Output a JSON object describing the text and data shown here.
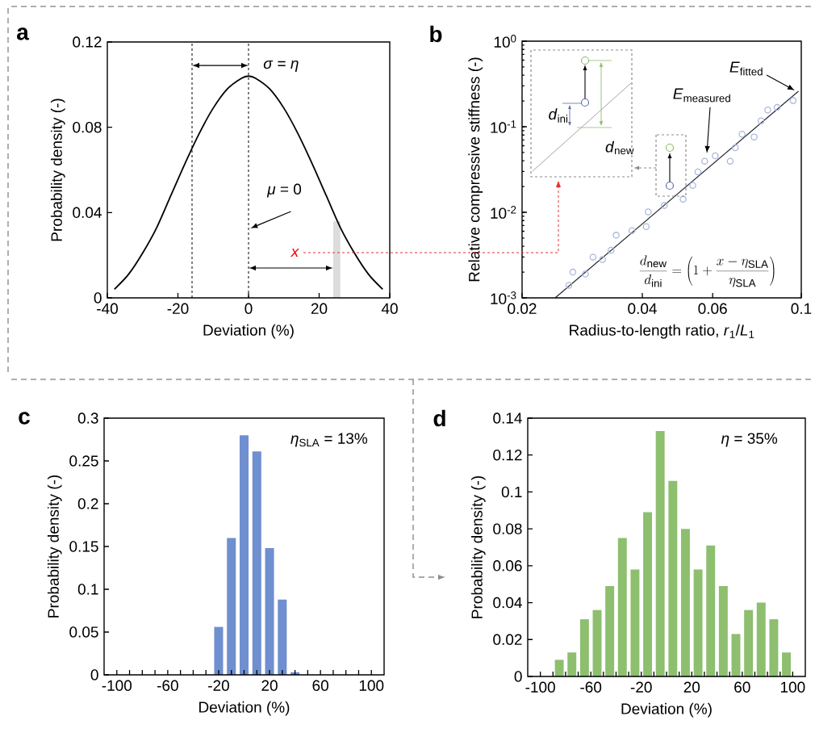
{
  "chart_data": [
    {
      "type": "line",
      "annotations": [
        "a",
        "*σ* = *η*",
        "*μ* = 0",
        "*x*"
      ],
      "xlabel": "Deviation (%)",
      "ylabel": "Probability density (-)",
      "x": [
        -38,
        -34,
        -30,
        -26,
        -22,
        -18,
        -14,
        -10,
        -6,
        -2,
        0,
        2,
        6,
        10,
        14,
        18,
        22,
        26,
        30,
        34,
        38
      ],
      "values": [
        0.004,
        0.011,
        0.021,
        0.033,
        0.048,
        0.063,
        0.077,
        0.089,
        0.098,
        0.103,
        0.104,
        0.103,
        0.098,
        0.089,
        0.077,
        0.063,
        0.048,
        0.033,
        0.021,
        0.011,
        0.004
      ],
      "color": "#000000",
      "marker": "none",
      "xlim": [
        -40,
        40
      ],
      "ylim": [
        0,
        0.12
      ],
      "xticks": [
        -40,
        -20,
        0,
        20,
        40
      ],
      "yticks": [
        0,
        0.04,
        0.08,
        0.12
      ],
      "ref_lines": [
        {
          "axis": "x",
          "value": -16,
          "line_style": "dashed",
          "color": "#000000"
        },
        {
          "axis": "x",
          "value": 0,
          "line_style": "dashed",
          "color": "#000000"
        }
      ],
      "bands": [
        {
          "axis": "x",
          "from": 24,
          "to": 26,
          "color": "#dcdcdc"
        }
      ]
    },
    {
      "type": "scatter",
      "annotations": [
        "b",
        "\\frac{d_{\\mathrm{new}}}{d_{\\mathrm{ini}}}=\\left(1+\\frac{x-\\eta_{\\mathrm{SLA}}}{\\eta_{\\mathrm{SLA}}}\\right)",
        "*d*$_{ini}$",
        "*d*$_{new}$"
      ],
      "xlabel": "Radius-to-length ratio, *r*$_{1}$/*L*$_{1}$",
      "ylabel": "Relative compressive stiffness (-)",
      "log": "xy",
      "xlim": [
        0.02,
        0.1
      ],
      "ylim": [
        0.001,
        1
      ],
      "xticks": [
        0.02,
        0.04,
        0.06,
        0.1
      ],
      "yticks": [
        {
          "value": 0.001,
          "label": "10$^{-3}$"
        },
        {
          "value": 0.01,
          "label": "10$^{-2}$"
        },
        {
          "value": 0.1,
          "label": "10$^{-1}$"
        },
        {
          "value": 1,
          "label": "10$^{0}$"
        }
      ],
      "series": [
        {
          "name": "*E*$_{measured}$",
          "type": "scatter",
          "marker": "circle",
          "color": "#aab8d8",
          "x": [
            0.0262,
            0.0268,
            0.0288,
            0.0301,
            0.0318,
            0.0334,
            0.0344,
            0.0377,
            0.0409,
            0.0414,
            0.0454,
            0.0506,
            0.0535,
            0.0551,
            0.0573,
            0.0609,
            0.0664,
            0.0684,
            0.0711,
            0.0762,
            0.0793,
            0.0824,
            0.087,
            0.0954
          ],
          "values": [
            0.0014,
            0.002,
            0.0019,
            0.003,
            0.0028,
            0.0036,
            0.0054,
            0.0061,
            0.0068,
            0.0101,
            0.012,
            0.0142,
            0.0206,
            0.0296,
            0.0396,
            0.0457,
            0.0396,
            0.0569,
            0.0817,
            0.076,
            0.117,
            0.157,
            0.168,
            0.202
          ]
        },
        {
          "name": "*E*$_{fitted}$",
          "type": "line",
          "color": "#1f1f2e",
          "x": [
            0.0242,
            0.0984
          ],
          "values": [
            0.001,
            0.26
          ]
        }
      ]
    },
    {
      "type": "histogram",
      "annotations": [
        "c",
        "*η*$_{SLA}$ = 13%"
      ],
      "xlabel": "Deviation (%)",
      "ylabel": "Probability density (-)",
      "bins": [
        -25,
        -15,
        -5,
        5,
        15,
        25,
        35,
        45
      ],
      "values": [
        0.056,
        0.16,
        0.28,
        0.261,
        0.148,
        0.088,
        0.003
      ],
      "color": "#6f8fd0",
      "xlim": [
        -110,
        110
      ],
      "ylim": [
        0,
        0.3
      ],
      "xticks": [
        -100,
        {
          "value": -90,
          "label": null
        },
        {
          "value": -80,
          "label": null
        },
        {
          "value": -70,
          "label": null
        },
        -60,
        {
          "value": -50,
          "label": null
        },
        {
          "value": -40,
          "label": null
        },
        {
          "value": -30,
          "label": null
        },
        -20,
        {
          "value": -10,
          "label": null
        },
        {
          "value": 0,
          "label": null
        },
        {
          "value": 10,
          "label": null
        },
        20,
        {
          "value": 30,
          "label": null
        },
        {
          "value": 40,
          "label": null
        },
        {
          "value": 50,
          "label": null
        },
        60,
        {
          "value": 70,
          "label": null
        },
        {
          "value": 80,
          "label": null
        },
        {
          "value": 90,
          "label": null
        },
        100
      ],
      "yticks": [
        0,
        0.05,
        0.1,
        0.15,
        0.2,
        0.25,
        0.3
      ]
    },
    {
      "type": "histogram",
      "annotations": [
        "d",
        "*η* = 35%"
      ],
      "xlabel": "Deviation (%)",
      "ylabel": "Probability density (-)",
      "bins": [
        -90,
        -80,
        -70,
        -60,
        -50,
        -40,
        -30,
        -20,
        -10,
        0,
        10,
        20,
        30,
        40,
        50,
        60,
        70,
        80,
        90,
        100
      ],
      "values": [
        0.009,
        0.013,
        0.031,
        0.036,
        0.049,
        0.075,
        0.058,
        0.089,
        0.133,
        0.106,
        0.08,
        0.058,
        0.071,
        0.049,
        0.023,
        0.036,
        0.04,
        0.031,
        0.013
      ],
      "color": "#8dbf6e",
      "xlim": [
        -110,
        110
      ],
      "ylim": [
        0,
        0.14
      ],
      "xticks": [
        -100,
        {
          "value": -90,
          "label": null
        },
        {
          "value": -80,
          "label": null
        },
        {
          "value": -70,
          "label": null
        },
        -60,
        {
          "value": -50,
          "label": null
        },
        {
          "value": -40,
          "label": null
        },
        {
          "value": -30,
          "label": null
        },
        -20,
        {
          "value": -10,
          "label": null
        },
        {
          "value": 0,
          "label": null
        },
        {
          "value": 10,
          "label": null
        },
        20,
        {
          "value": 30,
          "label": null
        },
        {
          "value": 40,
          "label": null
        },
        {
          "value": 50,
          "label": null
        },
        60,
        {
          "value": 70,
          "label": null
        },
        {
          "value": 80,
          "label": null
        },
        {
          "value": 90,
          "label": null
        },
        100
      ],
      "yticks": [
        0,
        0.02,
        0.04,
        0.06,
        0.08,
        0.1,
        0.12,
        0.14
      ]
    }
  ]
}
